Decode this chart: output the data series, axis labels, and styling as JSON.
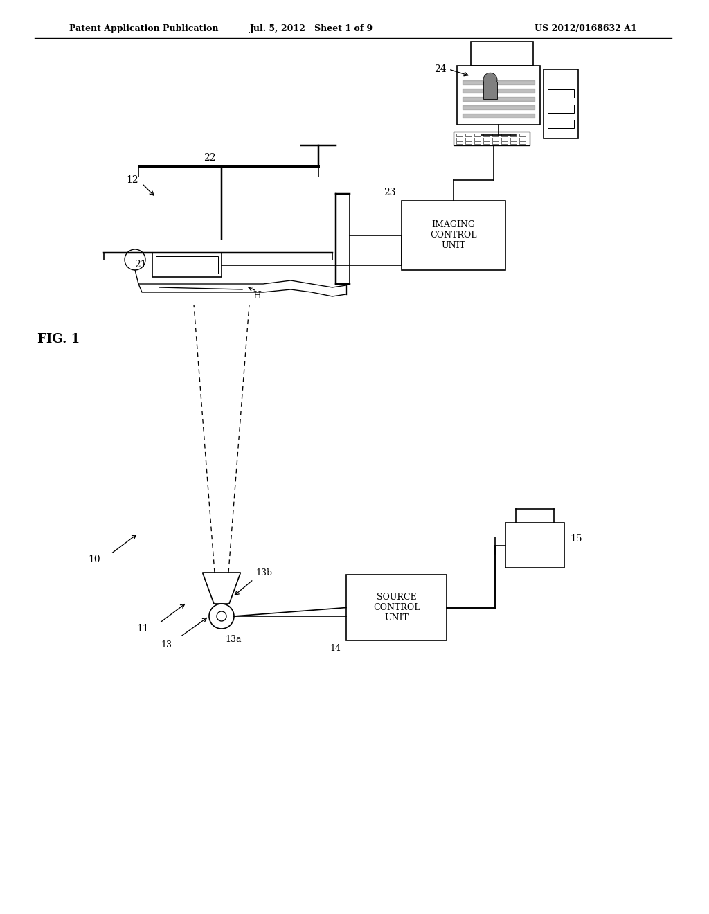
{
  "bg_color": "#ffffff",
  "line_color": "#000000",
  "header_left": "Patent Application Publication",
  "header_mid": "Jul. 5, 2012   Sheet 1 of 9",
  "header_right": "US 2012/0168632 A1",
  "fig_label": "FIG. 1",
  "label_10": "10",
  "label_11": "11",
  "label_12": "12",
  "label_13": "13",
  "label_13a": "13a",
  "label_13b": "13b",
  "label_14": "14",
  "label_15": "15",
  "label_21": "21",
  "label_22": "22",
  "label_23": "23",
  "label_24": "24",
  "label_H": "H",
  "text_source_control": "SOURCE\nCONTROL\nUNIT",
  "text_imaging_control": "IMAGING\nCONTROL\nUNIT"
}
